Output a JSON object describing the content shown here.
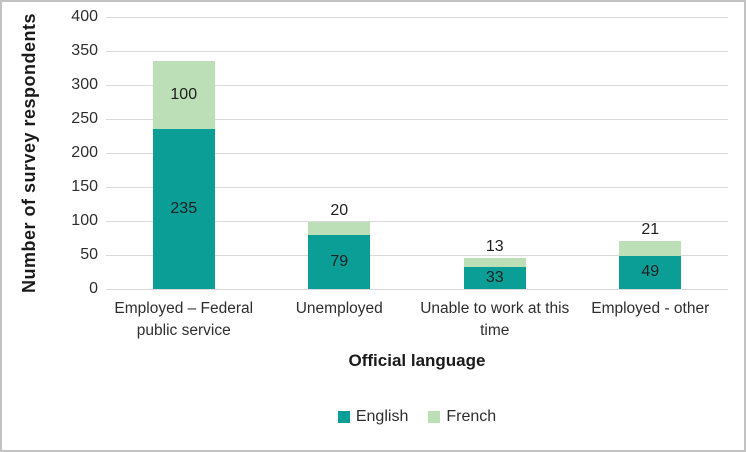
{
  "chart_data": {
    "type": "bar",
    "stacked": true,
    "title": "",
    "xlabel": "Official language",
    "ylabel": "Number of survey respondents",
    "ylim": [
      0,
      400
    ],
    "yticks": [
      0,
      50,
      100,
      150,
      200,
      250,
      300,
      350,
      400
    ],
    "grid": true,
    "legend_position": "bottom",
    "categories": [
      "Employed – Federal public service",
      "Unemployed",
      "Unable to work at this time",
      "Employed - other"
    ],
    "series": [
      {
        "name": "English",
        "color": "#0b9e97",
        "values": [
          235,
          79,
          33,
          49
        ]
      },
      {
        "name": "French",
        "color": "#bcdfb8",
        "values": [
          100,
          20,
          13,
          21
        ]
      }
    ],
    "data_labels_shown": [
      {
        "series": "English",
        "labels": [
          "235",
          "79",
          "33",
          "49"
        ],
        "placement": "inside"
      },
      {
        "series": "French",
        "labels": [
          "100",
          "20",
          "13",
          "21"
        ],
        "placement": "inside-if-fits-else-above"
      }
    ]
  },
  "colors": {
    "english": "#0b9e97",
    "french": "#bcdfb8",
    "gridline": "#d9d9d9",
    "frame_border": "#c2c2c2",
    "background": "#ffffff",
    "text": "#2e2e2e",
    "label_text": "#1f1f1f"
  }
}
